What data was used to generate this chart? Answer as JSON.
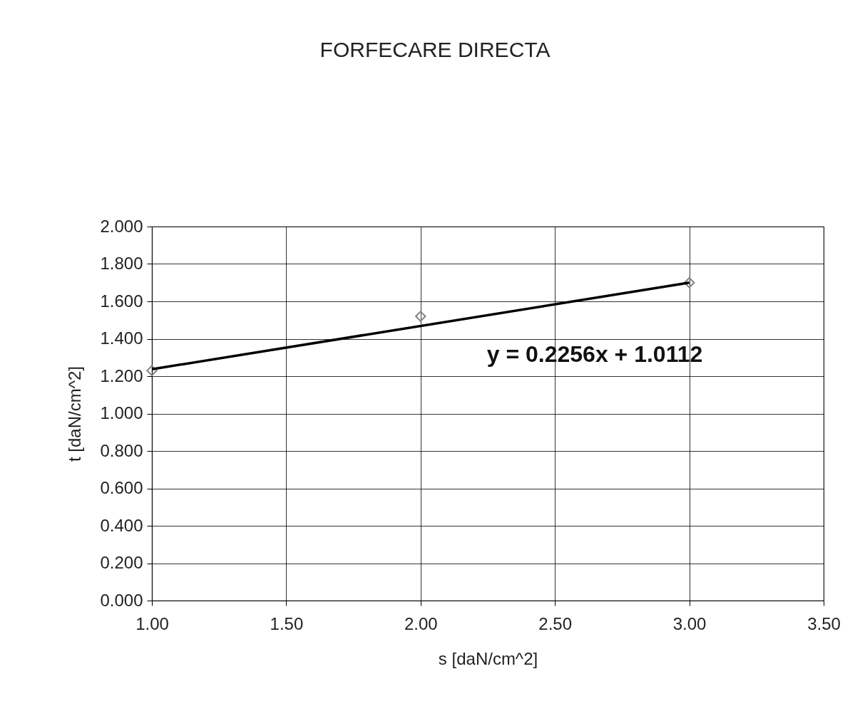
{
  "chart_data": {
    "type": "scatter",
    "title": "FORFECARE DIRECTA",
    "xlabel": "s   [daN/cm^2]",
    "ylabel": "t  [daN/cm^2]",
    "x": [
      1,
      2,
      3
    ],
    "series": [
      {
        "color": "#808080",
        "values": [
          1.23,
          1.52,
          1.7
        ],
        "marker": "diamond"
      },
      {
        "type": "line",
        "color": "#000000",
        "x": [
          1,
          3
        ],
        "values": [
          1.237,
          1.7
        ],
        "marker": "none"
      }
    ],
    "xlim": [
      1,
      3.5
    ],
    "xticks": [
      {
        "value": 1,
        "label": "1.00"
      },
      {
        "value": 1.5,
        "label": "1.50"
      },
      {
        "value": 2,
        "label": "2.00"
      },
      {
        "value": 2.5,
        "label": "2.50"
      },
      {
        "value": 3,
        "label": "3.00"
      },
      {
        "value": 3.5,
        "label": "3.50"
      }
    ],
    "ylim": [
      0,
      2
    ],
    "yticks": [
      {
        "value": 0,
        "label": "0.000"
      },
      {
        "value": 0.2,
        "label": "0.200"
      },
      {
        "value": 0.4,
        "label": "0.400"
      },
      {
        "value": 0.6,
        "label": "0.600"
      },
      {
        "value": 0.8,
        "label": "0.800"
      },
      {
        "value": 1,
        "label": "1.000"
      },
      {
        "value": 1.2,
        "label": "1.200"
      },
      {
        "value": 1.4,
        "label": "1.400"
      },
      {
        "value": 1.6,
        "label": "1.600"
      },
      {
        "value": 1.8,
        "label": "1.800"
      },
      {
        "value": 2,
        "label": "2.000"
      }
    ],
    "grid": true,
    "annotations": [
      "y = 0.2256x + 1.0112"
    ]
  }
}
